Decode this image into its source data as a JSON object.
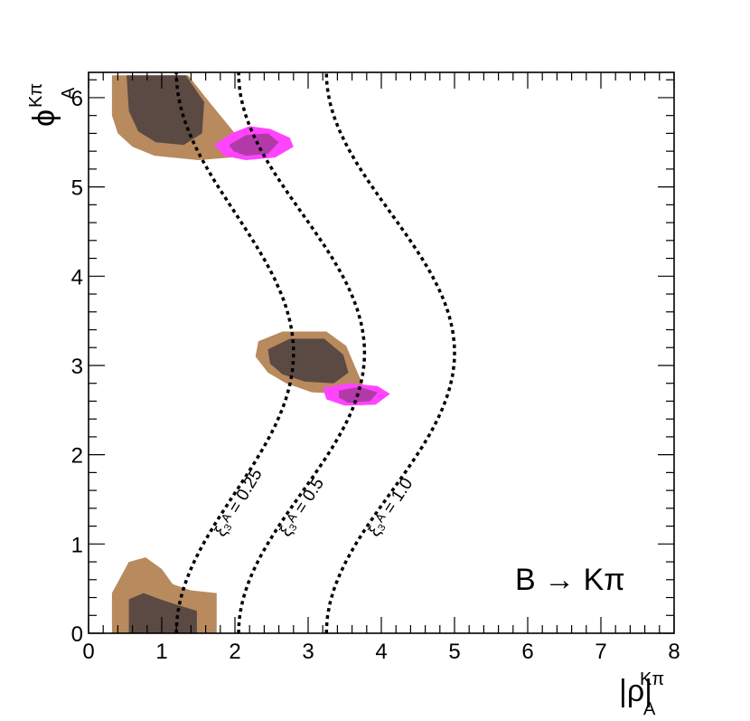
{
  "chart_data": {
    "type": "contour",
    "title": "",
    "xlabel": {
      "main": "|ρ|",
      "superscript": "Kπ",
      "subscript": "A"
    },
    "ylabel": {
      "main": "ϕ",
      "superscript": "Kπ",
      "subscript": "A"
    },
    "xlim": [
      0,
      8
    ],
    "ylim": [
      0,
      6.2832
    ],
    "x_major_ticks": [
      0,
      1,
      2,
      3,
      4,
      5,
      6,
      7,
      8
    ],
    "x_tick_labels": [
      "0",
      "1",
      "2",
      "3",
      "4",
      "5",
      "6",
      "7",
      "8"
    ],
    "y_major_ticks": [
      0,
      1,
      2,
      3,
      4,
      5,
      6
    ],
    "y_tick_labels": [
      "0",
      "1",
      "2",
      "3",
      "4",
      "5",
      "6"
    ],
    "annotation": "B → Kπ",
    "colors": {
      "outer": "#b88a5e",
      "inner": "#5b4a43",
      "magenta_outer": "#ff44ff",
      "magenta_inner": "#b23aa8",
      "curve": "#000000"
    },
    "regions": [
      {
        "name": "allowed-region-top",
        "outer": [
          [
            0.32,
            6.25
          ],
          [
            1.36,
            6.25
          ],
          [
            1.65,
            5.95
          ],
          [
            1.9,
            5.7
          ],
          [
            2.15,
            5.45
          ],
          [
            1.95,
            5.33
          ],
          [
            1.5,
            5.3
          ],
          [
            0.9,
            5.35
          ],
          [
            0.6,
            5.45
          ],
          [
            0.4,
            5.6
          ],
          [
            0.32,
            5.8
          ]
        ],
        "inner": [
          [
            0.52,
            6.25
          ],
          [
            1.33,
            6.25
          ],
          [
            1.58,
            5.95
          ],
          [
            1.55,
            5.6
          ],
          [
            1.3,
            5.47
          ],
          [
            0.92,
            5.5
          ],
          [
            0.68,
            5.62
          ],
          [
            0.55,
            5.85
          ]
        ]
      },
      {
        "name": "allowed-region-middle",
        "outer": [
          [
            2.32,
            3.27
          ],
          [
            2.65,
            3.38
          ],
          [
            3.25,
            3.38
          ],
          [
            3.52,
            3.22
          ],
          [
            3.65,
            2.97
          ],
          [
            3.75,
            2.78
          ],
          [
            3.48,
            2.68
          ],
          [
            3.05,
            2.7
          ],
          [
            2.7,
            2.8
          ],
          [
            2.45,
            2.92
          ],
          [
            2.28,
            3.1
          ]
        ],
        "inner": [
          [
            2.45,
            3.18
          ],
          [
            2.75,
            3.3
          ],
          [
            3.22,
            3.3
          ],
          [
            3.48,
            3.12
          ],
          [
            3.55,
            2.92
          ],
          [
            3.35,
            2.8
          ],
          [
            2.95,
            2.82
          ],
          [
            2.65,
            2.9
          ],
          [
            2.48,
            3.02
          ]
        ]
      },
      {
        "name": "allowed-region-bottom",
        "outer": [
          [
            0.32,
            0.45
          ],
          [
            0.55,
            0.8
          ],
          [
            0.78,
            0.85
          ],
          [
            1.0,
            0.72
          ],
          [
            1.15,
            0.55
          ],
          [
            1.4,
            0.48
          ],
          [
            1.75,
            0.45
          ],
          [
            1.75,
            0.0
          ],
          [
            0.32,
            0.0
          ]
        ],
        "inner": [
          [
            0.55,
            0.38
          ],
          [
            0.75,
            0.45
          ],
          [
            0.98,
            0.38
          ],
          [
            1.2,
            0.32
          ],
          [
            1.48,
            0.25
          ],
          [
            1.48,
            0.0
          ],
          [
            0.55,
            0.0
          ]
        ]
      }
    ],
    "magenta_regions": [
      {
        "name": "magenta-region-top",
        "outer": [
          [
            1.72,
            5.47
          ],
          [
            1.95,
            5.6
          ],
          [
            2.2,
            5.68
          ],
          [
            2.48,
            5.65
          ],
          [
            2.75,
            5.55
          ],
          [
            2.8,
            5.45
          ],
          [
            2.55,
            5.33
          ],
          [
            2.15,
            5.3
          ],
          [
            1.85,
            5.35
          ]
        ],
        "inner": [
          [
            1.92,
            5.47
          ],
          [
            2.15,
            5.58
          ],
          [
            2.45,
            5.6
          ],
          [
            2.6,
            5.5
          ],
          [
            2.45,
            5.37
          ],
          [
            2.15,
            5.35
          ],
          [
            1.98,
            5.4
          ]
        ]
      },
      {
        "name": "magenta-region-middle",
        "outer": [
          [
            3.2,
            2.75
          ],
          [
            3.55,
            2.8
          ],
          [
            3.95,
            2.77
          ],
          [
            4.12,
            2.68
          ],
          [
            3.92,
            2.56
          ],
          [
            3.5,
            2.55
          ],
          [
            3.25,
            2.62
          ]
        ],
        "inner": [
          [
            3.42,
            2.72
          ],
          [
            3.7,
            2.76
          ],
          [
            3.95,
            2.7
          ],
          [
            3.85,
            2.6
          ],
          [
            3.55,
            2.58
          ],
          [
            3.42,
            2.64
          ]
        ]
      }
    ],
    "curves": [
      {
        "label": "ξ₃ᴬ = 0.25",
        "a": 1.2,
        "b": 1.6
      },
      {
        "label": "ξ₃ᴬ = 0.5",
        "a": 2.05,
        "b": 1.72
      },
      {
        "label": "ξ₃ᴬ = 1.0",
        "a": 3.25,
        "b": 1.75
      }
    ]
  }
}
